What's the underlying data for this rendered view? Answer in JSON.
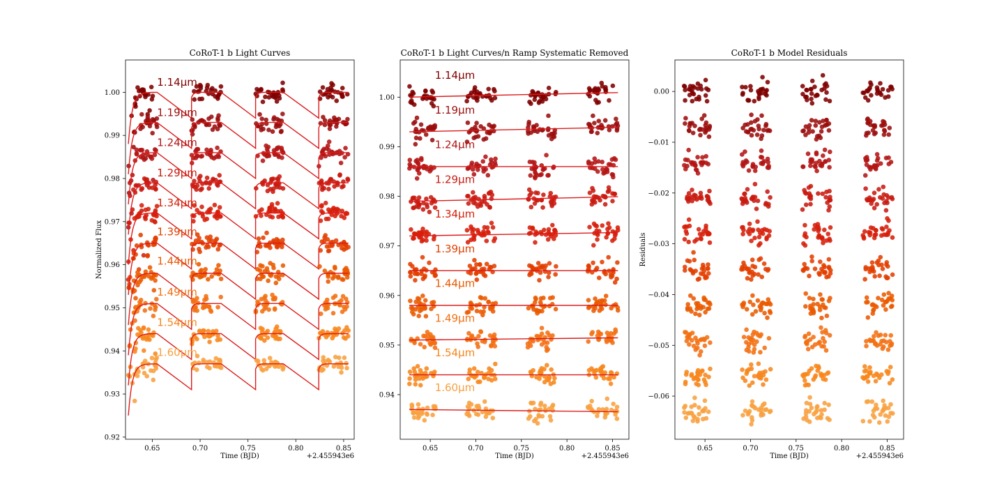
{
  "colors": [
    "#800000",
    "#9b0e0e",
    "#b31515",
    "#c81a10",
    "#d61f0a",
    "#e33f00",
    "#eb5a00",
    "#f27012",
    "#f7861c",
    "#f8a040"
  ],
  "model_color": "#dd1a1a",
  "chart_data": [
    {
      "type": "scatter",
      "title": "CoRoT-1 b Light Curves",
      "xlabel": "Time (BJD)",
      "ylabel": "Normalized Flux",
      "offset_text": "+2.455943e6",
      "xlim": [
        0.622,
        0.861
      ],
      "ylim": [
        0.9195,
        1.0075
      ],
      "xticks": [
        0.65,
        0.7,
        0.75,
        0.8,
        0.85
      ],
      "xtick_labels": [
        "0.65",
        "0.70",
        "0.75",
        "0.80",
        "0.85"
      ],
      "yticks": [
        0.92,
        0.93,
        0.94,
        0.95,
        0.96,
        0.97,
        0.98,
        0.99,
        1.0
      ],
      "ytick_labels": [
        "0.92",
        "0.93",
        "0.94",
        "0.95",
        "0.96",
        "0.97",
        "0.98",
        "0.99",
        "1.00"
      ],
      "orbits": [
        [
          0.625,
          0.655
        ],
        [
          0.691,
          0.722
        ],
        [
          0.758,
          0.787
        ],
        [
          0.824,
          0.855
        ]
      ],
      "ramp": true,
      "series": [
        {
          "name": "1.14µm",
          "level": 1.0,
          "slope": -0.02,
          "label_x": 0.655,
          "label_y": 1.0015
        },
        {
          "name": "1.19µm",
          "level": 0.993,
          "slope": -0.02,
          "label_x": 0.655,
          "label_y": 0.9945
        },
        {
          "name": "1.24µm",
          "level": 0.986,
          "slope": -0.02,
          "label_x": 0.655,
          "label_y": 0.9875
        },
        {
          "name": "1.29µm",
          "level": 0.979,
          "slope": -0.02,
          "label_x": 0.655,
          "label_y": 0.9805
        },
        {
          "name": "1.34µm",
          "level": 0.972,
          "slope": -0.02,
          "label_x": 0.655,
          "label_y": 0.9735
        },
        {
          "name": "1.39µm",
          "level": 0.965,
          "slope": -0.02,
          "label_x": 0.655,
          "label_y": 0.9668
        },
        {
          "name": "1.44µm",
          "level": 0.958,
          "slope": -0.02,
          "label_x": 0.655,
          "label_y": 0.96
        },
        {
          "name": "1.49µm",
          "level": 0.951,
          "slope": -0.02,
          "label_x": 0.655,
          "label_y": 0.9528
        },
        {
          "name": "1.54µm",
          "level": 0.944,
          "slope": -0.02,
          "label_x": 0.655,
          "label_y": 0.9458
        },
        {
          "name": "1.60µm",
          "level": 0.937,
          "slope": -0.02,
          "label_x": 0.655,
          "label_y": 0.9388
        }
      ]
    },
    {
      "type": "scatter",
      "title": "CoRoT-1 b Light Curves/n Ramp Systematic Removed",
      "xlabel": "Time (BJD)",
      "ylabel": "",
      "offset_text": "+2.455943e6",
      "xlim": [
        0.617,
        0.868
      ],
      "ylim": [
        0.931,
        1.0075
      ],
      "xticks": [
        0.65,
        0.7,
        0.75,
        0.8,
        0.85
      ],
      "xtick_labels": [
        "0.65",
        "0.70",
        "0.75",
        "0.80",
        "0.85"
      ],
      "yticks": [
        0.94,
        0.95,
        0.96,
        0.97,
        0.98,
        0.99,
        1.0
      ],
      "ytick_labels": [
        "0.94",
        "0.95",
        "0.96",
        "0.97",
        "0.98",
        "0.99",
        "1.00"
      ],
      "orbits": [
        [
          0.627,
          0.656
        ],
        [
          0.69,
          0.722
        ],
        [
          0.757,
          0.788
        ],
        [
          0.823,
          0.856
        ]
      ],
      "ramp": false,
      "series": [
        {
          "name": "1.14µm",
          "level": 1.0,
          "slope": 0.004,
          "label_x": 0.655,
          "label_y": 1.0037
        },
        {
          "name": "1.19µm",
          "level": 0.993,
          "slope": 0.004,
          "label_x": 0.655,
          "label_y": 0.9967
        },
        {
          "name": "1.24µm",
          "level": 0.986,
          "slope": 0.0,
          "label_x": 0.655,
          "label_y": 0.9897
        },
        {
          "name": "1.29µm",
          "level": 0.979,
          "slope": 0.004,
          "label_x": 0.655,
          "label_y": 0.9827
        },
        {
          "name": "1.34µm",
          "level": 0.972,
          "slope": 0.003,
          "label_x": 0.655,
          "label_y": 0.9757
        },
        {
          "name": "1.39µm",
          "level": 0.965,
          "slope": 0.0,
          "label_x": 0.655,
          "label_y": 0.9687
        },
        {
          "name": "1.44µm",
          "level": 0.958,
          "slope": 0.0,
          "label_x": 0.655,
          "label_y": 0.9617
        },
        {
          "name": "1.49µm",
          "level": 0.951,
          "slope": 0.002,
          "label_x": 0.655,
          "label_y": 0.9547
        },
        {
          "name": "1.54µm",
          "level": 0.944,
          "slope": 0.0,
          "label_x": 0.655,
          "label_y": 0.9477
        },
        {
          "name": "1.60µm",
          "level": 0.937,
          "slope": -0.002,
          "label_x": 0.655,
          "label_y": 0.9407
        }
      ]
    },
    {
      "type": "scatter",
      "title": "CoRoT-1 b Model Residuals",
      "xlabel": "Time (BJD)",
      "ylabel": "Residuals",
      "offset_text": "+2.455943e6",
      "xlim": [
        0.617,
        0.868
      ],
      "ylim": [
        -0.0685,
        0.0062
      ],
      "xticks": [
        0.65,
        0.7,
        0.75,
        0.8,
        0.85
      ],
      "xtick_labels": [
        "0.65",
        "0.70",
        "0.75",
        "0.80",
        "0.85"
      ],
      "yticks": [
        0.0,
        -0.01,
        -0.02,
        -0.03,
        -0.04,
        -0.05,
        -0.06
      ],
      "ytick_labels": [
        "0.00",
        "−0.01",
        "−0.02",
        "−0.03",
        "−0.04",
        "−0.05",
        "−0.06"
      ],
      "orbits": [
        [
          0.627,
          0.656
        ],
        [
          0.69,
          0.722
        ],
        [
          0.757,
          0.788
        ],
        [
          0.823,
          0.856
        ]
      ],
      "ramp": false,
      "series": [
        {
          "level": 0.0,
          "slope": 0
        },
        {
          "level": -0.007,
          "slope": 0
        },
        {
          "level": -0.014,
          "slope": 0
        },
        {
          "level": -0.021,
          "slope": 0
        },
        {
          "level": -0.028,
          "slope": 0
        },
        {
          "level": -0.035,
          "slope": 0
        },
        {
          "level": -0.042,
          "slope": 0
        },
        {
          "level": -0.049,
          "slope": 0
        },
        {
          "level": -0.056,
          "slope": 0
        },
        {
          "level": -0.063,
          "slope": 0
        }
      ]
    }
  ]
}
